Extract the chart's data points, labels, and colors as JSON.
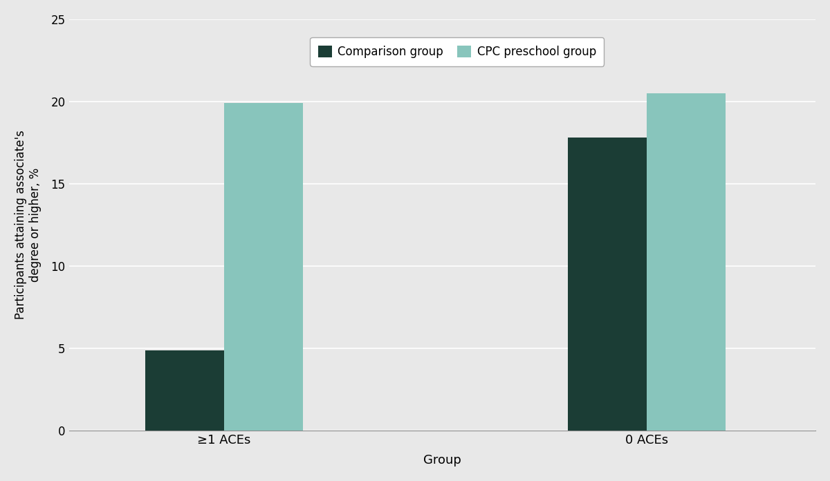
{
  "groups": [
    "≥1 ACEs",
    "0 ACEs"
  ],
  "comparison_values": [
    4.9,
    17.8
  ],
  "cpc_values": [
    19.9,
    20.5
  ],
  "comparison_color": "#1b3d35",
  "cpc_color": "#88c5bc",
  "bar_width": 0.28,
  "group_positions": [
    1.0,
    2.5
  ],
  "ylabel": "Participants attaining associate's\ndegree or higher, %",
  "xlabel": "Group",
  "ylim": [
    0,
    25
  ],
  "yticks": [
    0,
    5,
    10,
    15,
    20,
    25
  ],
  "legend_labels": [
    "Comparison group",
    "CPC preschool group"
  ],
  "background_color": "#e8e8e8",
  "axes_background": "#e8e8e8",
  "grid_color": "#ffffff",
  "title": ""
}
